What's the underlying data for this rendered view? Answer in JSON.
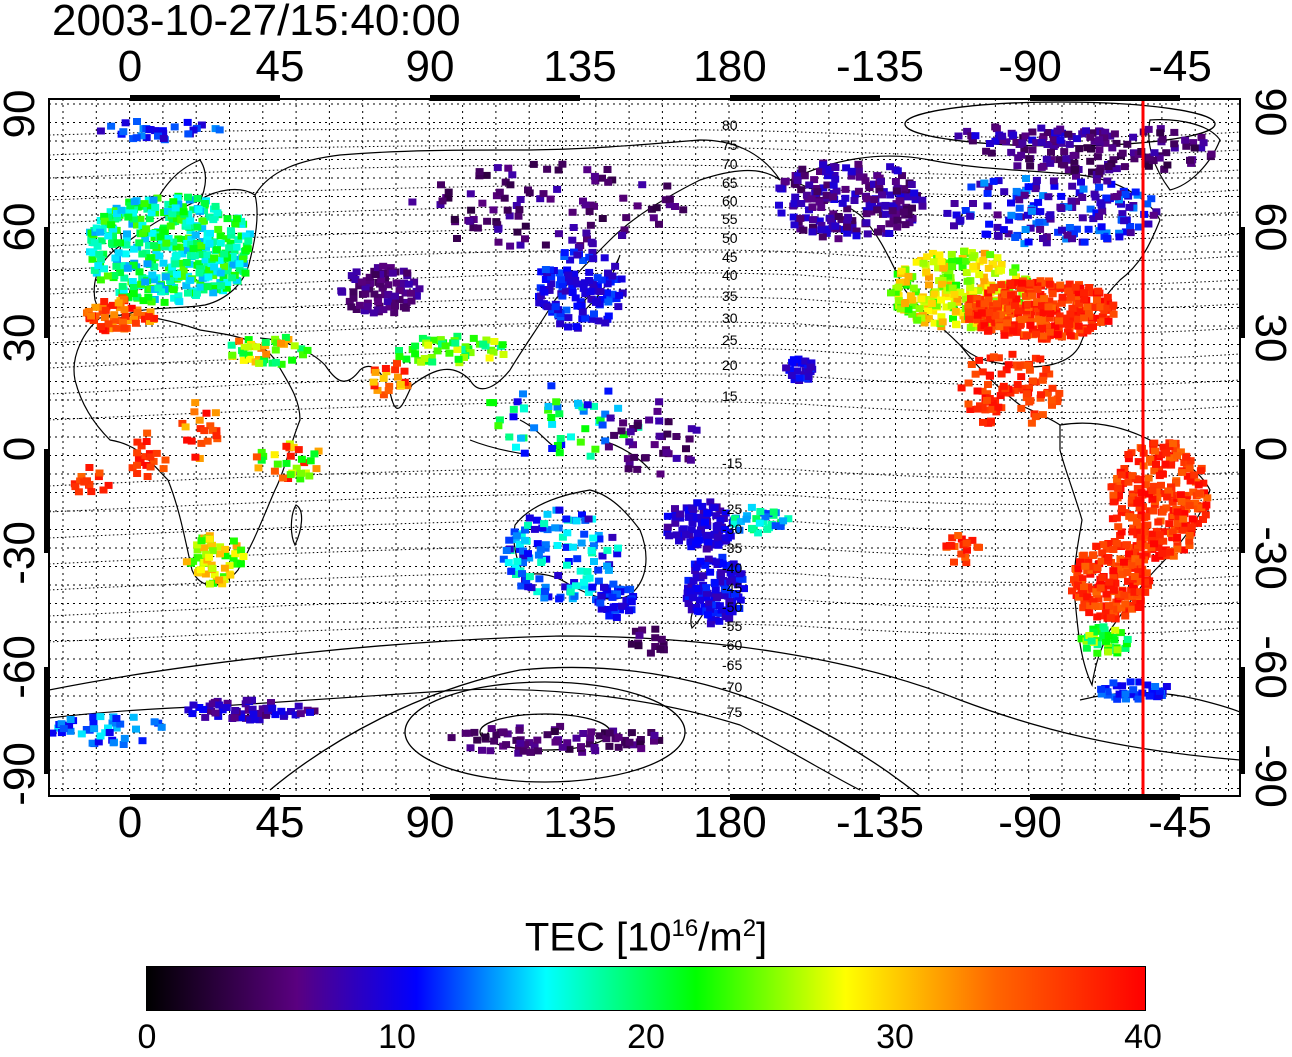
{
  "header": {
    "timestamp": "2003-10-27/15:40:00"
  },
  "map": {
    "type": "global TEC map, cylindrical projection",
    "lon_ticks": [
      "0",
      "45",
      "90",
      "135",
      "180",
      "-135",
      "-90",
      "-45"
    ],
    "lat_ticks": [
      "90",
      "60",
      "30",
      "0",
      "-30",
      "-60",
      "-90"
    ],
    "magnetic_latitude_labels": [
      "80",
      "75",
      "70",
      "65",
      "60",
      "55",
      "50",
      "45",
      "40",
      "35",
      "30",
      "25",
      "20",
      "15",
      "-15",
      "-25",
      "-30",
      "-35",
      "-40",
      "-45",
      "-50",
      "-55",
      "-60",
      "-65",
      "-70",
      "-75"
    ],
    "terminator_line_color": "#ff0000"
  },
  "colorbar": {
    "title": "TEC  [10",
    "title_sup": "16",
    "title_mid": "/m",
    "title_sup2": "2",
    "title_end": "]",
    "ticks": [
      "0",
      "10",
      "20",
      "30",
      "40"
    ],
    "range": [
      0,
      40
    ]
  }
}
